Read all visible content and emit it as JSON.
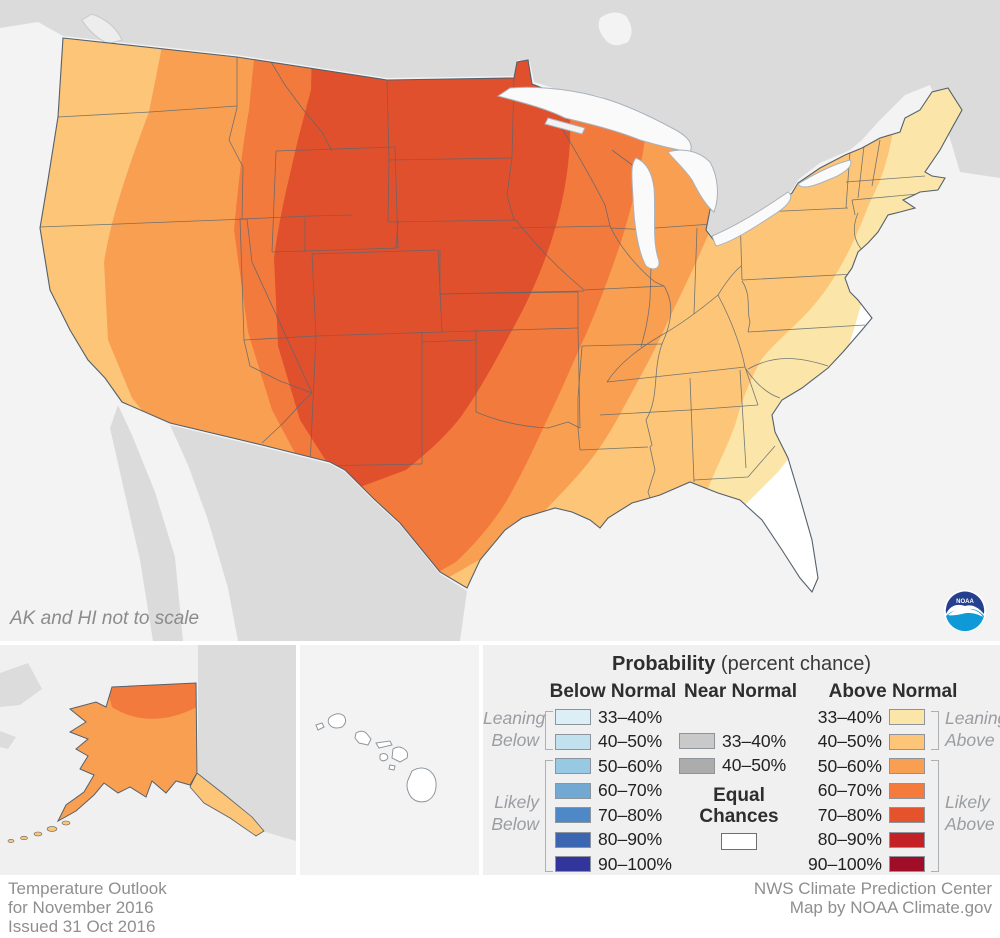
{
  "map": {
    "note": "AK and HI not to scale",
    "logo_text": "NOAA",
    "ocean_color": "#f3f3f3",
    "foreign_land_color": "#dbdbdb",
    "band_colors": {
      "b33": "#FBE5A8",
      "b40": "#FCC577",
      "b50": "#F99F52",
      "b60": "#F37A3D",
      "b70": "#E0502D",
      "equal": "#FFFFFF"
    }
  },
  "legend": {
    "title_bold": "Probability",
    "title_rest": " (percent chance)",
    "below": {
      "header": "Below Normal",
      "leaning_label": "Leaning\nBelow",
      "likely_label": "Likely\nBelow",
      "rows": [
        {
          "range": "33–40%",
          "color": "#DCEFF7"
        },
        {
          "range": "40–50%",
          "color": "#C1E1EF"
        },
        {
          "range": "50–60%",
          "color": "#98C9E3"
        },
        {
          "range": "60–70%",
          "color": "#72A9D3"
        },
        {
          "range": "70–80%",
          "color": "#4E88C7"
        },
        {
          "range": "80–90%",
          "color": "#3D66B2"
        },
        {
          "range": "90–100%",
          "color": "#32359C"
        }
      ]
    },
    "near": {
      "header": "Near Normal",
      "rows": [
        {
          "range": "33–40%",
          "color": "#C9C9C9"
        },
        {
          "range": "40–50%",
          "color": "#ACACAC"
        }
      ]
    },
    "equal": {
      "header": "Equal Chances",
      "color": "#FFFFFF"
    },
    "above": {
      "header": "Above Normal",
      "leaning_label": "Leaning\nAbove",
      "likely_label": "Likely\nAbove",
      "rows": [
        {
          "range": "33–40%",
          "color": "#FBE5A8"
        },
        {
          "range": "40–50%",
          "color": "#FCC577"
        },
        {
          "range": "50–60%",
          "color": "#F99F52"
        },
        {
          "range": "60–70%",
          "color": "#F57B3D"
        },
        {
          "range": "70–80%",
          "color": "#E5532D"
        },
        {
          "range": "80–90%",
          "color": "#C42127"
        },
        {
          "range": "90–100%",
          "color": "#9F0D26"
        }
      ]
    }
  },
  "footer": {
    "left_lines": [
      "Temperature Outlook",
      "for November 2016",
      "Issued 31 Oct 2016"
    ],
    "right_lines": [
      "NWS Climate Prediction Center",
      "Map by NOAA Climate.gov"
    ]
  }
}
